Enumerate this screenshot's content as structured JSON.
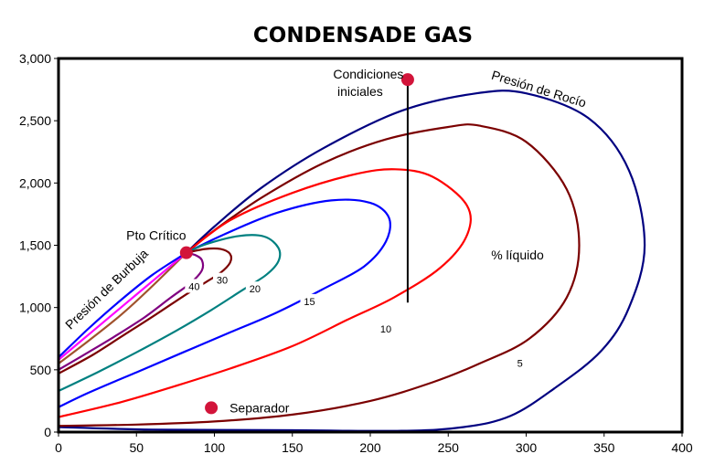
{
  "chart_data": {
    "type": "line",
    "title": "CONDENSADE GAS",
    "xlabel": "",
    "ylabel": "",
    "xlim": [
      0,
      400
    ],
    "ylim": [
      0,
      3000
    ],
    "x_ticks": [
      0,
      50,
      100,
      150,
      200,
      250,
      300,
      350,
      400
    ],
    "y_ticks": [
      0,
      500,
      1000,
      1500,
      2000,
      2500,
      3000
    ],
    "x_tick_labels": [
      "0",
      "50",
      "100",
      "150",
      "200",
      "250",
      "300",
      "350",
      "400"
    ],
    "y_tick_labels": [
      "0",
      "500",
      "1,000",
      "1,500",
      "2,000",
      "2,500",
      "3,000"
    ],
    "grid": false,
    "critical_point": {
      "label": "Pto Crítico",
      "x": 82,
      "y": 1440,
      "color": "#d2143a"
    },
    "initial_conditions": {
      "label_line1": "Condiciones",
      "label_line2": "iniciales",
      "x": 224,
      "y": 2830,
      "color": "#d2143a"
    },
    "separator": {
      "label": "Separador",
      "x": 98,
      "y": 195,
      "color": "#d2143a"
    },
    "isothermal_line": {
      "x": 224,
      "y_top": 2830,
      "y_bottom": 1040,
      "color": "#000000"
    },
    "annotations": {
      "dew_curve_label": "Presión de Rocío",
      "bubble_curve_label": "Presión de Burbuja",
      "liquid_percent_label": "% líquido"
    },
    "series": [
      {
        "label": "",
        "color": "#000080",
        "role": "dew",
        "points": [
          [
            82,
            1440
          ],
          [
            100,
            1650
          ],
          [
            130,
            1960
          ],
          [
            170,
            2280
          ],
          [
            220,
            2580
          ],
          [
            268,
            2720
          ],
          [
            300,
            2720
          ],
          [
            340,
            2520
          ],
          [
            366,
            2100
          ],
          [
            376,
            1500
          ],
          [
            366,
            1000
          ],
          [
            348,
            650
          ],
          [
            318,
            350
          ],
          [
            290,
            130
          ],
          [
            260,
            40
          ],
          [
            220,
            10
          ],
          [
            150,
            15
          ],
          [
            60,
            20
          ],
          [
            0,
            40
          ]
        ]
      },
      {
        "label": "5",
        "color": "#7b0000",
        "points": [
          [
            82,
            1440
          ],
          [
            100,
            1620
          ],
          [
            130,
            1880
          ],
          [
            170,
            2160
          ],
          [
            210,
            2350
          ],
          [
            250,
            2450
          ],
          [
            270,
            2460
          ],
          [
            300,
            2330
          ],
          [
            326,
            1950
          ],
          [
            334,
            1500
          ],
          [
            326,
            1080
          ],
          [
            302,
            750
          ],
          [
            270,
            550
          ],
          [
            240,
            400
          ],
          [
            200,
            250
          ],
          [
            150,
            140
          ],
          [
            100,
            85
          ],
          [
            50,
            60
          ],
          [
            0,
            50
          ]
        ]
      },
      {
        "label": "10",
        "color": "#ff0000",
        "points": [
          [
            82,
            1440
          ],
          [
            110,
            1700
          ],
          [
            150,
            1920
          ],
          [
            190,
            2070
          ],
          [
            216,
            2110
          ],
          [
            240,
            2050
          ],
          [
            262,
            1820
          ],
          [
            262,
            1580
          ],
          [
            245,
            1320
          ],
          [
            215,
            1080
          ],
          [
            185,
            900
          ],
          [
            150,
            690
          ],
          [
            110,
            510
          ],
          [
            75,
            370
          ],
          [
            40,
            240
          ],
          [
            0,
            120
          ]
        ]
      },
      {
        "label": "15",
        "color": "#0000ff",
        "points": [
          [
            82,
            1440
          ],
          [
            105,
            1580
          ],
          [
            140,
            1760
          ],
          [
            175,
            1860
          ],
          [
            200,
            1840
          ],
          [
            212,
            1720
          ],
          [
            210,
            1530
          ],
          [
            196,
            1330
          ],
          [
            170,
            1150
          ],
          [
            140,
            960
          ],
          [
            110,
            800
          ],
          [
            80,
            640
          ],
          [
            50,
            480
          ],
          [
            20,
            320
          ],
          [
            0,
            200
          ]
        ]
      },
      {
        "label": "20",
        "color": "#008080",
        "points": [
          [
            82,
            1440
          ],
          [
            95,
            1510
          ],
          [
            116,
            1575
          ],
          [
            132,
            1570
          ],
          [
            141,
            1480
          ],
          [
            141,
            1370
          ],
          [
            133,
            1260
          ],
          [
            118,
            1140
          ],
          [
            98,
            980
          ],
          [
            75,
            810
          ],
          [
            50,
            640
          ],
          [
            25,
            480
          ],
          [
            0,
            330
          ]
        ]
      },
      {
        "label": "30",
        "color": "#7b0000",
        "points": [
          [
            82,
            1440
          ],
          [
            94,
            1470
          ],
          [
            104,
            1470
          ],
          [
            110,
            1430
          ],
          [
            110,
            1360
          ],
          [
            104,
            1280
          ],
          [
            94,
            1200
          ],
          [
            80,
            1090
          ],
          [
            62,
            940
          ],
          [
            42,
            780
          ],
          [
            22,
            620
          ],
          [
            0,
            470
          ]
        ]
      },
      {
        "label": "40",
        "color": "#800080",
        "points": [
          [
            82,
            1440
          ],
          [
            88,
            1420
          ],
          [
            92,
            1380
          ],
          [
            92,
            1300
          ],
          [
            85,
            1200
          ],
          [
            72,
            1080
          ],
          [
            55,
            920
          ],
          [
            35,
            760
          ],
          [
            15,
            610
          ],
          [
            0,
            500
          ]
        ]
      },
      {
        "label": "",
        "color": "#a0522d",
        "points": [
          [
            82,
            1440
          ],
          [
            60,
            1170
          ],
          [
            40,
            940
          ],
          [
            20,
            740
          ],
          [
            0,
            550
          ]
        ]
      },
      {
        "label": "",
        "color": "#ff00ff",
        "points": [
          [
            82,
            1440
          ],
          [
            62,
            1230
          ],
          [
            40,
            1000
          ],
          [
            20,
            790
          ],
          [
            0,
            580
          ]
        ]
      },
      {
        "label": "",
        "color": "#0000ff",
        "role": "bubble",
        "points": [
          [
            82,
            1440
          ],
          [
            60,
            1260
          ],
          [
            40,
            1060
          ],
          [
            20,
            840
          ],
          [
            0,
            600
          ]
        ]
      }
    ],
    "curve_labels": [
      {
        "text": "5",
        "x": 296,
        "y": 555
      },
      {
        "text": "10",
        "x": 210,
        "y": 830
      },
      {
        "text": "15",
        "x": 161,
        "y": 1050
      },
      {
        "text": "20",
        "x": 126,
        "y": 1150
      },
      {
        "text": "30",
        "x": 105,
        "y": 1220
      },
      {
        "text": "40",
        "x": 87,
        "y": 1170
      }
    ]
  }
}
